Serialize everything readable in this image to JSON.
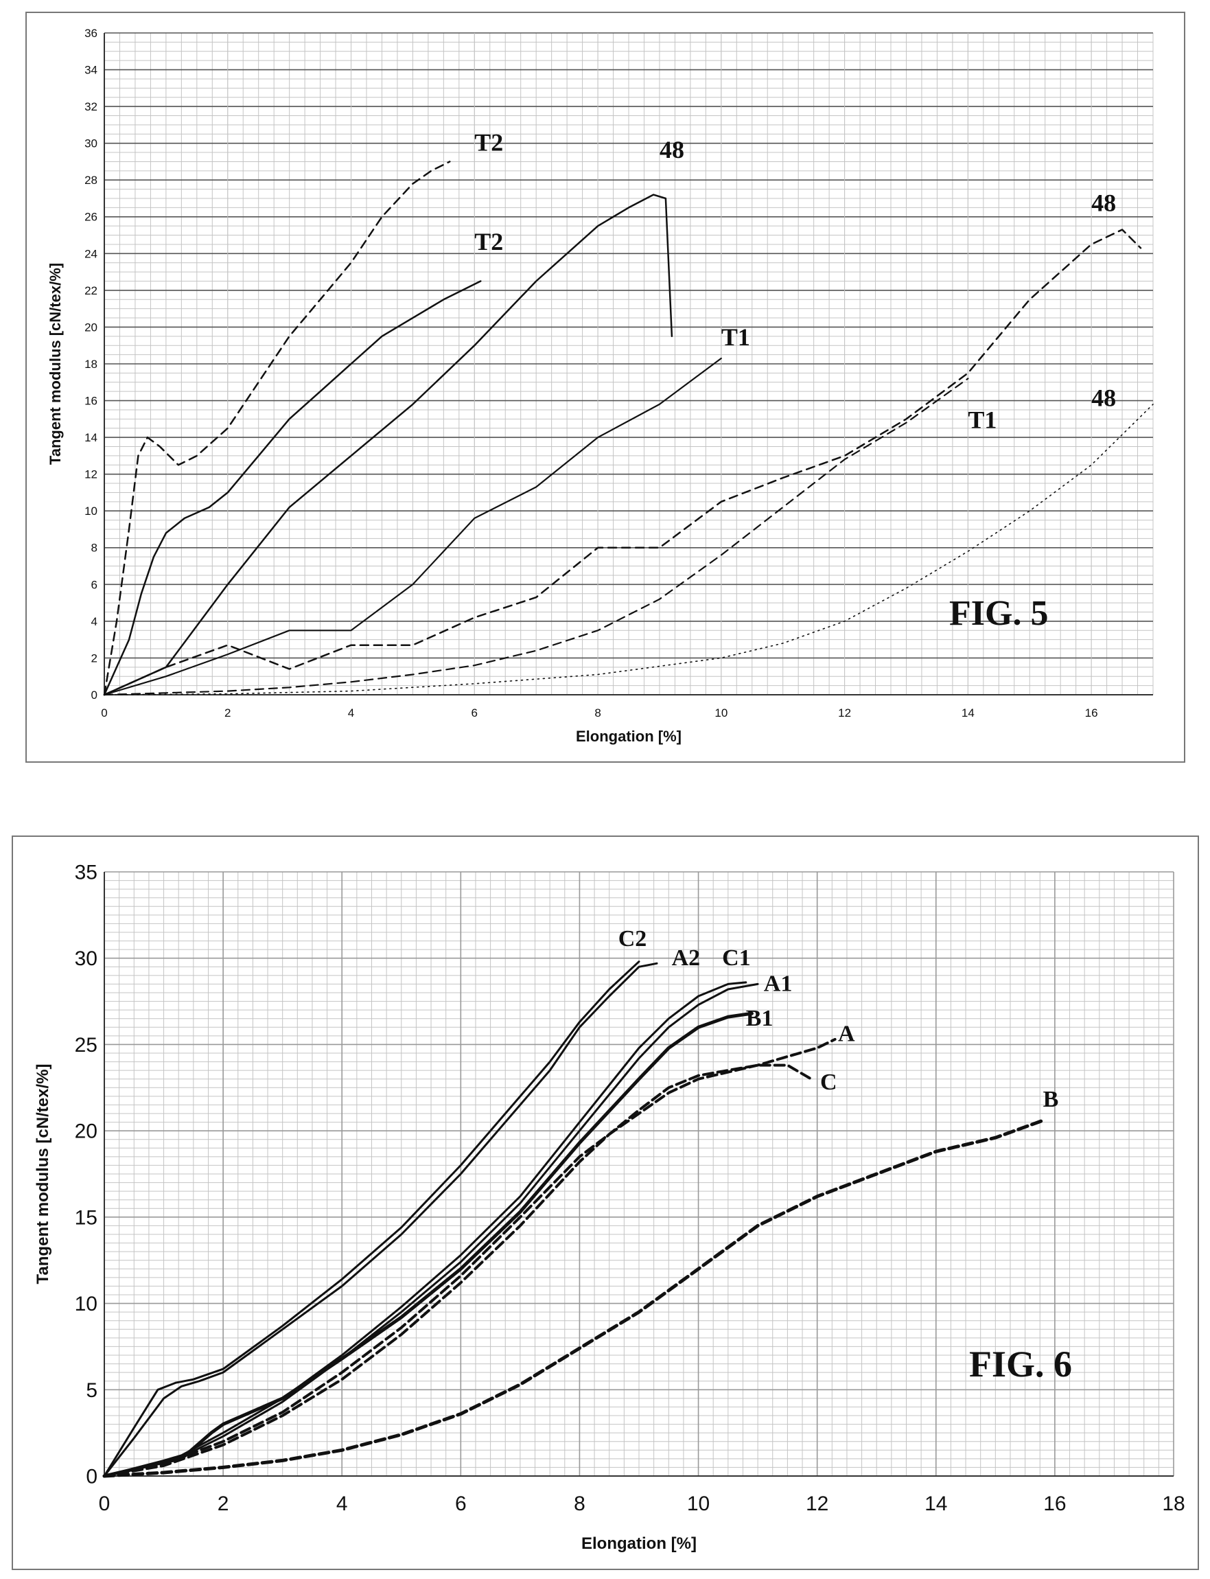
{
  "chart_data": [
    {
      "type": "line",
      "fig_label": "FIG. 5",
      "xlabel": "Elongation [%]",
      "ylabel": "Tangent modulus [cN/tex/%]",
      "xlim": [
        0,
        17
      ],
      "ylim": [
        0,
        36
      ],
      "xticks": [
        "0",
        "2",
        "4",
        "6",
        "8",
        "10",
        "12",
        "14",
        "16"
      ],
      "yticks": [
        "0",
        "2",
        "4",
        "6",
        "8",
        "10",
        "12",
        "14",
        "16",
        "18",
        "20",
        "22",
        "24",
        "26",
        "28",
        "30",
        "32",
        "34",
        "36"
      ],
      "grid": true,
      "series": [
        {
          "name": "T2",
          "style": "dashed",
          "x": [
            0,
            0.2,
            0.4,
            0.55,
            0.7,
            0.9,
            1.2,
            1.5,
            2,
            2.5,
            3,
            3.5,
            4,
            4.5,
            5,
            5.3,
            5.6
          ],
          "y": [
            0,
            4,
            9,
            13,
            14,
            13.5,
            12.5,
            13,
            14.5,
            17,
            19.5,
            21.5,
            23.5,
            26,
            27.8,
            28.5,
            29
          ]
        },
        {
          "name": "T2",
          "style": "solid",
          "x": [
            0,
            0.2,
            0.4,
            0.6,
            0.8,
            1,
            1.3,
            1.7,
            2,
            2.5,
            3,
            3.5,
            4,
            4.5,
            5,
            5.5,
            6.1
          ],
          "y": [
            0,
            1.5,
            3,
            5.5,
            7.5,
            8.8,
            9.6,
            10.2,
            11,
            13,
            15,
            16.5,
            18,
            19.5,
            20.5,
            21.5,
            22.5
          ]
        },
        {
          "name": "48",
          "style": "solid",
          "x": [
            0,
            1,
            2,
            3,
            4,
            5,
            6,
            7,
            8,
            8.5,
            8.9,
            9.1,
            9.2
          ],
          "y": [
            0,
            1.5,
            6,
            10.2,
            13,
            15.8,
            19,
            22.5,
            25.5,
            26.5,
            27.2,
            27,
            19.5
          ]
        },
        {
          "name": "T1",
          "style": "solid",
          "x": [
            0,
            1,
            2,
            3,
            4,
            5,
            6,
            7,
            8,
            9,
            10
          ],
          "y": [
            0,
            1,
            2.2,
            3.5,
            3.5,
            6,
            9.6,
            11.3,
            14,
            15.8,
            18.3
          ]
        },
        {
          "name": "48",
          "style": "dashed",
          "x": [
            0,
            1,
            2,
            3,
            4,
            5,
            6,
            7,
            8,
            9,
            10,
            11,
            12,
            13,
            14,
            15,
            16,
            16.5,
            16.8
          ],
          "y": [
            0,
            1.5,
            2.7,
            1.4,
            2.7,
            2.7,
            4.2,
            5.3,
            8,
            8,
            10.5,
            11.8,
            13,
            15,
            17.5,
            21.5,
            24.5,
            25.3,
            24.3
          ]
        },
        {
          "name": "T1",
          "style": "dashed",
          "x": [
            0,
            1,
            2,
            3,
            4,
            5,
            6,
            7,
            8,
            9,
            10,
            11,
            12,
            13,
            14
          ],
          "y": [
            0,
            0.1,
            0.2,
            0.4,
            0.7,
            1.1,
            1.6,
            2.4,
            3.5,
            5.2,
            7.6,
            10.2,
            12.8,
            14.8,
            17.2
          ]
        },
        {
          "name": "48",
          "style": "dotted",
          "x": [
            0,
            2,
            4,
            6,
            8,
            10,
            11,
            12,
            13,
            14,
            15,
            16,
            17
          ],
          "y": [
            0,
            0.05,
            0.2,
            0.6,
            1.1,
            2,
            2.8,
            4,
            5.8,
            7.8,
            10,
            12.5,
            15.8
          ]
        }
      ],
      "labels": [
        {
          "text": "T2",
          "x": 6.0,
          "y": 29.6
        },
        {
          "text": "48",
          "x": 9.0,
          "y": 29.2
        },
        {
          "text": "T2",
          "x": 6.0,
          "y": 24.2
        },
        {
          "text": "48",
          "x": 16.0,
          "y": 26.3
        },
        {
          "text": "T1",
          "x": 10.0,
          "y": 19.0
        },
        {
          "text": "T1",
          "x": 14.0,
          "y": 14.5
        },
        {
          "text": "48",
          "x": 16.0,
          "y": 15.7
        }
      ]
    },
    {
      "type": "line",
      "fig_label": "FIG. 6",
      "xlabel": "Elongation [%]",
      "ylabel": "Tangent modulus  [cN/tex/%]",
      "xlim": [
        0,
        18
      ],
      "ylim": [
        0,
        35
      ],
      "xticks": [
        "0",
        "2",
        "4",
        "6",
        "8",
        "10",
        "12",
        "14",
        "16",
        "18"
      ],
      "yticks": [
        "0",
        "5",
        "10",
        "15",
        "20",
        "25",
        "30",
        "35"
      ],
      "grid": true,
      "series": [
        {
          "name": "C2",
          "style": "solid",
          "x": [
            0,
            0.5,
            0.9,
            1.2,
            1.5,
            2,
            3,
            4,
            5,
            6,
            7,
            7.5,
            8,
            8.5,
            9
          ],
          "y": [
            0,
            2.8,
            5,
            5.4,
            5.6,
            6.2,
            8.7,
            11.4,
            14.4,
            18,
            22,
            24,
            26.3,
            28.2,
            29.8
          ]
        },
        {
          "name": "A2",
          "style": "solid",
          "x": [
            0,
            0.5,
            1,
            1.3,
            1.6,
            2,
            3,
            4,
            5,
            6,
            7,
            7.5,
            8,
            8.5,
            9,
            9.3
          ],
          "y": [
            0,
            2.2,
            4.5,
            5.2,
            5.5,
            6,
            8.5,
            11,
            14,
            17.5,
            21.5,
            23.5,
            26,
            27.8,
            29.5,
            29.7
          ]
        },
        {
          "name": "C1",
          "style": "solid",
          "x": [
            0,
            1,
            1.3,
            2,
            3,
            4,
            5,
            6,
            7,
            8,
            9,
            9.5,
            10,
            10.5,
            10.8
          ],
          "y": [
            0,
            0.9,
            1.2,
            2.5,
            4.5,
            7,
            9.8,
            12.8,
            16.2,
            20.5,
            24.8,
            26.5,
            27.8,
            28.5,
            28.6
          ]
        },
        {
          "name": "A1",
          "style": "solid",
          "x": [
            0,
            1,
            1.3,
            2,
            3,
            4,
            5,
            6,
            7,
            8,
            9,
            9.5,
            10,
            10.5,
            11
          ],
          "y": [
            0,
            0.8,
            1.1,
            2.3,
            4.3,
            6.8,
            9.5,
            12.4,
            15.8,
            20,
            24.2,
            26,
            27.3,
            28.2,
            28.5
          ]
        },
        {
          "name": "B1",
          "style": "solid",
          "x": [
            0,
            1,
            1.3,
            1.8,
            2,
            3,
            4,
            5,
            6,
            7,
            8,
            9,
            9.5,
            10,
            10.5,
            10.9
          ],
          "y": [
            0,
            0.8,
            1,
            2.5,
            3,
            4.5,
            6.8,
            9.2,
            12,
            15.3,
            19.3,
            23,
            24.8,
            26,
            26.6,
            26.8
          ]
        },
        {
          "name": "A",
          "style": "dashed",
          "x": [
            0,
            1,
            2,
            3,
            4,
            5,
            6,
            7,
            8,
            8.5,
            9,
            9.5,
            10,
            10.5,
            11,
            11.5,
            12,
            12.3
          ],
          "y": [
            0,
            0.7,
            2,
            3.7,
            6,
            8.6,
            11.6,
            15,
            18.5,
            19.8,
            21,
            22.2,
            23,
            23.4,
            23.8,
            24.3,
            24.8,
            25.3
          ]
        },
        {
          "name": "C",
          "style": "dashed",
          "x": [
            0,
            1,
            2,
            3,
            4,
            5,
            6,
            7,
            8,
            8.5,
            9,
            9.5,
            10,
            10.5,
            11,
            11.5,
            11.9
          ],
          "y": [
            0,
            0.6,
            1.8,
            3.5,
            5.6,
            8.2,
            11.2,
            14.5,
            18.2,
            19.8,
            21.2,
            22.5,
            23.2,
            23.5,
            23.8,
            23.8,
            23
          ]
        },
        {
          "name": "B",
          "style": "dashed",
          "x": [
            0,
            1,
            2,
            3,
            4,
            5,
            6,
            7,
            8,
            9,
            10,
            11,
            12,
            13,
            14,
            15,
            15.8
          ],
          "y": [
            0,
            0.2,
            0.5,
            0.9,
            1.5,
            2.4,
            3.6,
            5.3,
            7.4,
            9.5,
            12,
            14.5,
            16.2,
            17.5,
            18.8,
            19.6,
            20.6
          ]
        }
      ],
      "labels": [
        {
          "text": "C2",
          "x": 8.65,
          "y": 30.7
        },
        {
          "text": "A2",
          "x": 9.55,
          "y": 29.6
        },
        {
          "text": "C1",
          "x": 10.4,
          "y": 29.6
        },
        {
          "text": "A1",
          "x": 11.1,
          "y": 28.1
        },
        {
          "text": "B1",
          "x": 10.8,
          "y": 26.1
        },
        {
          "text": "A",
          "x": 12.35,
          "y": 25.2
        },
        {
          "text": "C",
          "x": 12.05,
          "y": 22.4
        },
        {
          "text": "B",
          "x": 15.8,
          "y": 21.4
        }
      ]
    }
  ]
}
